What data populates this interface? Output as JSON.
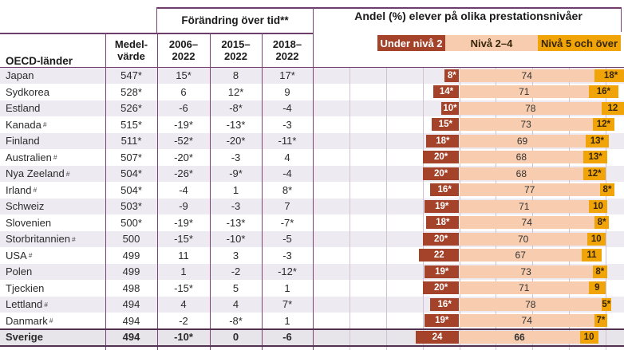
{
  "header": {
    "oecd_label": "OECD-länder",
    "mean_label": "Medel-\nvärde",
    "change_title": "Förändring över tid**",
    "change_cols": [
      "2006–\n2022",
      "2015–\n2022",
      "2018–\n2022"
    ],
    "dist_title": "Andel (%) elever på olika prestationsnivåer"
  },
  "legend": [
    {
      "label": "Under nivå 2",
      "color": "#a5422a",
      "text_color": "#ffffff"
    },
    {
      "label": "Nivå 2–4",
      "color": "#f8cdaf",
      "text_color": "#38260a"
    },
    {
      "label": "Nivå 5 och över",
      "color": "#f0a408",
      "text_color": "#38260a"
    }
  ],
  "colors": {
    "border_purple": "#7a4477",
    "gridline_light": "#d2c0d3",
    "stripe_gray": "#edebf1",
    "sverige_row_bg": "#e7e4ea",
    "under_level2": "#a5422a",
    "level_2_4": "#f8cdaf",
    "level_5_plus": "#f0a408"
  },
  "footnote_marker": "#",
  "chart_data": {
    "type": "bar",
    "orientation": "horizontal-stacked",
    "note": "Bars anchored at the boundary between 'Under nivå 2' (extends left) and 'Nivå 2–4' (extends right); gridlines every 20 percentage points",
    "axis": {
      "unit": "%",
      "gridline_step_pct": 20
    },
    "categories": [
      "Japan",
      "Sydkorea",
      "Estland",
      "Kanada",
      "Finland",
      "Australien",
      "Nya Zeeland",
      "Irland",
      "Schweiz",
      "Slovenien",
      "Storbritannien",
      "USA",
      "Polen",
      "Tjeckien",
      "Lettland",
      "Danmark",
      "Sverige"
    ],
    "category_has_footnote": [
      false,
      false,
      false,
      true,
      false,
      true,
      true,
      true,
      false,
      false,
      true,
      true,
      false,
      false,
      true,
      true,
      false
    ],
    "bold_row_index": 16,
    "table_columns": {
      "mean": [
        "547*",
        "528*",
        "526*",
        "515*",
        "511*",
        "507*",
        "504*",
        "504*",
        "503*",
        "500*",
        "500",
        "499",
        "499",
        "498",
        "494",
        "494",
        "494"
      ],
      "change_2006_2022": [
        "15*",
        "6",
        "-6",
        "-19*",
        "-52*",
        "-20*",
        "-26*",
        "-4",
        "-9",
        "-19*",
        "-15*",
        "11",
        "1",
        "-15*",
        "4",
        "-2",
        "-10*"
      ],
      "change_2015_2022": [
        "8",
        "12*",
        "-8*",
        "-13*",
        "-20*",
        "-3",
        "-9*",
        "1",
        "-3",
        "-13*",
        "-10*",
        "3",
        "-2",
        "5",
        "4",
        "-8*",
        "0"
      ],
      "change_2018_2022": [
        "17*",
        "9",
        "-4",
        "-3",
        "-11*",
        "4",
        "-4",
        "8*",
        "7",
        "-7*",
        "-5",
        "-3",
        "-12*",
        "1",
        "7*",
        "1",
        "-6"
      ]
    },
    "series": [
      {
        "name": "Under nivå 2",
        "values": [
          8,
          14,
          10,
          15,
          18,
          20,
          20,
          16,
          19,
          18,
          20,
          22,
          19,
          20,
          16,
          19,
          24
        ],
        "labels": [
          "8*",
          "14*",
          "10*",
          "15*",
          "18*",
          "20*",
          "20*",
          "16*",
          "19*",
          "18*",
          "20*",
          "22",
          "19*",
          "20*",
          "16*",
          "19*",
          "24"
        ]
      },
      {
        "name": "Nivå 2–4",
        "values": [
          74,
          71,
          78,
          73,
          69,
          68,
          68,
          77,
          71,
          74,
          70,
          67,
          73,
          71,
          78,
          74,
          66
        ],
        "labels": [
          "74",
          "71",
          "78",
          "73",
          "69",
          "68",
          "68",
          "77",
          "71",
          "74",
          "70",
          "67",
          "73",
          "71",
          "78",
          "74",
          "66"
        ]
      },
      {
        "name": "Nivå 5 och över",
        "values": [
          18,
          16,
          12,
          12,
          13,
          13,
          12,
          8,
          10,
          8,
          10,
          11,
          8,
          9,
          5,
          7,
          10
        ],
        "labels": [
          "18*",
          "16*",
          "12",
          "12*",
          "13*",
          "13*",
          "12*",
          "8*",
          "10",
          "8*",
          "10",
          "11",
          "8*",
          "9",
          "5*",
          "7*",
          "10"
        ]
      }
    ]
  }
}
